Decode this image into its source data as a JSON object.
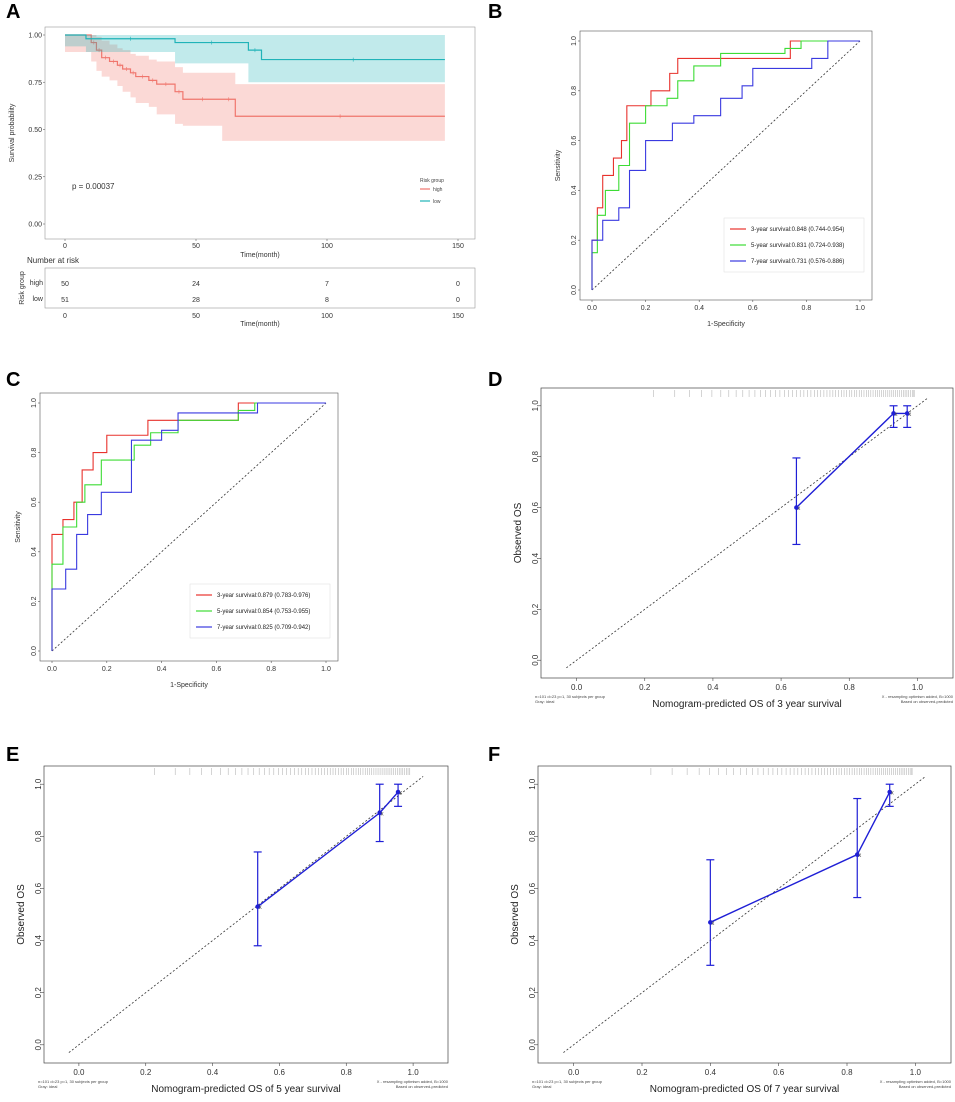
{
  "chart_data": [
    {
      "panel": "A",
      "type": "line",
      "title": "",
      "xlabel": "Time(month)",
      "ylabel": "Survival probability",
      "xlim": [
        0,
        150
      ],
      "ylim": [
        0,
        1
      ],
      "xticks": [
        "0",
        "50",
        "100",
        "150"
      ],
      "yticks": [
        "0.00",
        "0.25",
        "0.50",
        "0.75",
        "1.00"
      ],
      "pvalue": "p = 0.00037",
      "legend_title": "Risk group",
      "legend": [
        "high",
        "low"
      ],
      "colors": [
        "#f0766d",
        "#20b3b8"
      ],
      "series": [
        {
          "name": "high",
          "x": [
            0,
            10,
            12,
            14,
            17,
            20,
            22,
            25,
            27,
            32,
            35,
            42,
            45,
            60,
            65,
            145
          ],
          "y": [
            1.0,
            0.96,
            0.92,
            0.88,
            0.86,
            0.84,
            0.82,
            0.8,
            0.78,
            0.76,
            0.74,
            0.7,
            0.66,
            0.66,
            0.57,
            0.57
          ],
          "ci_lo": [
            1.0,
            0.91,
            0.86,
            0.81,
            0.78,
            0.76,
            0.73,
            0.7,
            0.67,
            0.64,
            0.62,
            0.58,
            0.53,
            0.52,
            0.44,
            0.44
          ],
          "ci_hi": [
            1.0,
            1.0,
            0.99,
            0.97,
            0.95,
            0.93,
            0.92,
            0.9,
            0.89,
            0.87,
            0.86,
            0.83,
            0.8,
            0.8,
            0.74,
            0.74
          ]
        },
        {
          "name": "low",
          "x": [
            0,
            8,
            42,
            70,
            75,
            145
          ],
          "y": [
            1.0,
            0.98,
            0.96,
            0.92,
            0.87,
            0.87
          ],
          "ci_lo": [
            1.0,
            0.94,
            0.91,
            0.85,
            0.75,
            0.75
          ],
          "ci_hi": [
            1.0,
            1.0,
            1.0,
            1.0,
            1.0,
            1.0
          ]
        }
      ],
      "risk_table": {
        "title": "Number at risk",
        "ylabel": "Risk group",
        "xlabel": "Time(month)",
        "rows": [
          {
            "group": "high",
            "values": [
              "50",
              "24",
              "7",
              "0"
            ]
          },
          {
            "group": "low",
            "values": [
              "51",
              "28",
              "8",
              "0"
            ]
          }
        ]
      }
    },
    {
      "panel": "B",
      "type": "line",
      "xlabel": "1-Specificity",
      "ylabel": "Sensitivity",
      "xlim": [
        0,
        1
      ],
      "ylim": [
        0,
        1
      ],
      "ticks": [
        "0.0",
        "0.2",
        "0.4",
        "0.6",
        "0.8",
        "1.0"
      ],
      "series": [
        {
          "name": "3-year survival:0.848 (0.744-0.954)",
          "color": "#e8322d",
          "x": [
            0,
            0,
            0.02,
            0.02,
            0.04,
            0.04,
            0.08,
            0.08,
            0.11,
            0.11,
            0.13,
            0.13,
            0.18,
            0.18,
            0.22,
            0.22,
            0.29,
            0.29,
            0.32,
            0.32,
            0.74,
            0.74,
            0.8,
            0.8,
            1
          ],
          "y": [
            0,
            0.2,
            0.2,
            0.33,
            0.33,
            0.46,
            0.46,
            0.53,
            0.53,
            0.6,
            0.6,
            0.74,
            0.74,
            0.74,
            0.74,
            0.8,
            0.8,
            0.87,
            0.87,
            0.93,
            0.93,
            1.0,
            1.0,
            1.0,
            1.0
          ]
        },
        {
          "name": "5-year survival:0.831 (0.724-0.938)",
          "color": "#3ddc35",
          "x": [
            0,
            0,
            0.02,
            0.02,
            0.05,
            0.05,
            0.1,
            0.1,
            0.14,
            0.14,
            0.2,
            0.2,
            0.28,
            0.28,
            0.32,
            0.32,
            0.38,
            0.38,
            0.48,
            0.48,
            0.72,
            0.72,
            0.78,
            0.78,
            1
          ],
          "y": [
            0,
            0.15,
            0.15,
            0.3,
            0.3,
            0.4,
            0.4,
            0.5,
            0.5,
            0.67,
            0.67,
            0.74,
            0.74,
            0.77,
            0.77,
            0.84,
            0.84,
            0.9,
            0.9,
            0.95,
            0.95,
            0.97,
            0.97,
            1.0,
            1.0
          ]
        },
        {
          "name": "7-year survival:0.731 (0.576-0.886)",
          "color": "#3a3ae0",
          "x": [
            0,
            0,
            0.04,
            0.04,
            0.1,
            0.1,
            0.14,
            0.14,
            0.2,
            0.2,
            0.3,
            0.3,
            0.38,
            0.38,
            0.48,
            0.48,
            0.56,
            0.56,
            0.6,
            0.6,
            0.74,
            0.74,
            0.82,
            0.82,
            0.88,
            0.88,
            1
          ],
          "y": [
            0,
            0.2,
            0.2,
            0.28,
            0.28,
            0.33,
            0.33,
            0.48,
            0.48,
            0.6,
            0.6,
            0.67,
            0.67,
            0.7,
            0.7,
            0.77,
            0.77,
            0.82,
            0.82,
            0.89,
            0.89,
            0.89,
            0.89,
            0.93,
            0.93,
            1.0,
            1.0
          ]
        }
      ]
    },
    {
      "panel": "C",
      "type": "line",
      "xlabel": "1-Specificity",
      "ylabel": "Sensitivity",
      "xlim": [
        0,
        1
      ],
      "ylim": [
        0,
        1
      ],
      "ticks": [
        "0.0",
        "0.2",
        "0.4",
        "0.6",
        "0.8",
        "1.0"
      ],
      "series": [
        {
          "name": "3-year survival:0.879 (0.783-0.976)",
          "color": "#e8322d",
          "x": [
            0,
            0,
            0.04,
            0.04,
            0.08,
            0.08,
            0.11,
            0.11,
            0.15,
            0.15,
            0.2,
            0.2,
            0.35,
            0.35,
            0.44,
            0.44,
            0.68,
            0.68,
            0.72,
            0.72,
            1
          ],
          "y": [
            0,
            0.47,
            0.47,
            0.53,
            0.53,
            0.6,
            0.6,
            0.73,
            0.73,
            0.8,
            0.8,
            0.87,
            0.87,
            0.93,
            0.93,
            0.93,
            0.93,
            1.0,
            1.0,
            1.0,
            1.0
          ]
        },
        {
          "name": "5-year survival:0.854 (0.753-0.955)",
          "color": "#3ddc35",
          "x": [
            0,
            0,
            0.04,
            0.04,
            0.09,
            0.09,
            0.12,
            0.12,
            0.18,
            0.18,
            0.3,
            0.3,
            0.36,
            0.36,
            0.46,
            0.46,
            0.68,
            0.68,
            0.74,
            0.74,
            1
          ],
          "y": [
            0,
            0.35,
            0.35,
            0.5,
            0.5,
            0.6,
            0.6,
            0.67,
            0.67,
            0.77,
            0.77,
            0.83,
            0.83,
            0.88,
            0.88,
            0.93,
            0.93,
            0.97,
            0.97,
            1.0,
            1.0
          ]
        },
        {
          "name": "7-year survival:0.825 (0.709-0.942)",
          "color": "#3a3ae0",
          "x": [
            0,
            0,
            0.05,
            0.05,
            0.09,
            0.09,
            0.13,
            0.13,
            0.18,
            0.18,
            0.29,
            0.29,
            0.4,
            0.4,
            0.46,
            0.46,
            0.7,
            0.7,
            0.75,
            0.75,
            1
          ],
          "y": [
            0,
            0.25,
            0.25,
            0.33,
            0.33,
            0.47,
            0.47,
            0.55,
            0.55,
            0.64,
            0.64,
            0.85,
            0.85,
            0.89,
            0.89,
            0.96,
            0.96,
            0.96,
            0.96,
            1.0,
            1.0
          ]
        }
      ]
    },
    {
      "panel": "D",
      "type": "scatter",
      "xlabel": "Nomogram-predicted OS of 3 year survival",
      "ylabel": "Observed OS",
      "xlim": [
        -0.05,
        1.05
      ],
      "ylim": [
        -0.03,
        1.03
      ],
      "ticks": [
        "0.0",
        "0.2",
        "0.4",
        "0.6",
        "0.8",
        "1.0"
      ],
      "points": [
        {
          "x": 0.645,
          "y": 0.6,
          "lo": 0.455,
          "hi": 0.795
        },
        {
          "x": 0.93,
          "y": 0.97,
          "lo": 0.915,
          "hi": 1.0
        },
        {
          "x": 0.97,
          "y": 0.97,
          "lo": 0.915,
          "hi": 1.0
        }
      ],
      "footnote_left": [
        "n=101 d=23 p=1, 30 subjects per group",
        "Gray: ideal"
      ],
      "footnote_right": [
        "X - resampling optimism added, B=1000",
        "Based on observed-predicted"
      ]
    },
    {
      "panel": "E",
      "type": "scatter",
      "xlabel": "Nomogram-predicted OS of 5 year survival",
      "ylabel": "Observed OS",
      "xlim": [
        -0.05,
        1.05
      ],
      "ylim": [
        -0.03,
        1.03
      ],
      "ticks": [
        "0.0",
        "0.2",
        "0.4",
        "0.6",
        "0.8",
        "1.0"
      ],
      "points": [
        {
          "x": 0.535,
          "y": 0.53,
          "lo": 0.38,
          "hi": 0.74
        },
        {
          "x": 0.9,
          "y": 0.89,
          "lo": 0.78,
          "hi": 1.0
        },
        {
          "x": 0.955,
          "y": 0.97,
          "lo": 0.915,
          "hi": 1.0
        }
      ],
      "footnote_left": [
        "n=101 d=23 p=1, 30 subjects per group",
        "Gray: ideal"
      ],
      "footnote_right": [
        "X - resampling optimism added, B=1000",
        "Based on observed-predicted"
      ]
    },
    {
      "panel": "F",
      "type": "scatter",
      "xlabel": "Nomogram-predicted OS 0f 7 year survival",
      "ylabel": "Observed OS",
      "xlim": [
        -0.05,
        1.05
      ],
      "ylim": [
        -0.03,
        1.03
      ],
      "ticks": [
        "0.0",
        "0.2",
        "0.4",
        "0.6",
        "0.8",
        "1.0"
      ],
      "points": [
        {
          "x": 0.4,
          "y": 0.47,
          "lo": 0.305,
          "hi": 0.71
        },
        {
          "x": 0.83,
          "y": 0.73,
          "lo": 0.565,
          "hi": 0.945
        },
        {
          "x": 0.925,
          "y": 0.97,
          "lo": 0.915,
          "hi": 1.0
        }
      ],
      "footnote_left": [
        "n=101 d=23 p=1, 30 subjects per group",
        "Gray: ideal"
      ],
      "footnote_right": [
        "X - resampling optimism added, B=1000",
        "Based on observed-predicted"
      ]
    }
  ]
}
